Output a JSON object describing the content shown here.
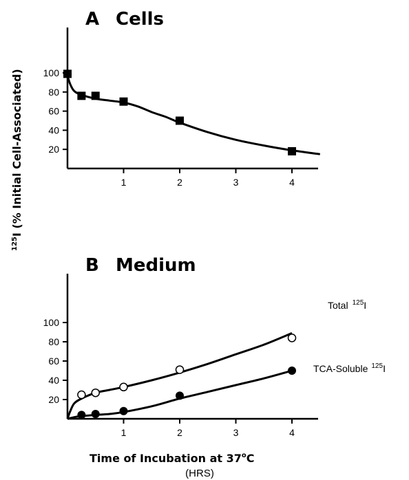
{
  "chart_data": [
    {
      "type": "line",
      "panel": "A",
      "title": "Cells",
      "xlim": [
        0,
        4.5
      ],
      "ylim": [
        0,
        105
      ],
      "xticks": [
        "1",
        "2",
        "3",
        "4"
      ],
      "yticks": [
        "20",
        "40",
        "60",
        "80",
        "100"
      ],
      "series": [
        {
          "marker": "filled-square",
          "points": [
            {
              "x": 0,
              "y": 99
            },
            {
              "x": 0.25,
              "y": 76
            },
            {
              "x": 0.5,
              "y": 76
            },
            {
              "x": 1,
              "y": 70
            },
            {
              "x": 2,
              "y": 50
            },
            {
              "x": 4,
              "y": 18
            }
          ],
          "fit": [
            [
              0,
              97
            ],
            [
              0.05,
              88
            ],
            [
              0.12,
              81
            ],
            [
              0.25,
              77
            ],
            [
              0.5,
              73
            ],
            [
              0.75,
              71
            ],
            [
              1,
              69
            ],
            [
              1.25,
              65
            ],
            [
              1.5,
              59
            ],
            [
              1.75,
              54
            ],
            [
              2,
              48
            ],
            [
              2.5,
              38
            ],
            [
              3,
              30
            ],
            [
              3.5,
              24
            ],
            [
              4,
              19
            ],
            [
              4.5,
              15
            ]
          ]
        }
      ]
    },
    {
      "type": "line",
      "panel": "B",
      "title": "Medium",
      "xlim": [
        0,
        4.5
      ],
      "ylim": [
        0,
        105
      ],
      "xticks": [
        "1",
        "2",
        "3",
        "4"
      ],
      "yticks": [
        "20",
        "40",
        "60",
        "80",
        "100"
      ],
      "series": [
        {
          "name": "Total",
          "name_sup": "125",
          "name_tail": "I",
          "marker": "open-circle",
          "points": [
            {
              "x": 0.25,
              "y": 25
            },
            {
              "x": 0.5,
              "y": 27
            },
            {
              "x": 1,
              "y": 33
            },
            {
              "x": 2,
              "y": 51
            },
            {
              "x": 4,
              "y": 84
            }
          ],
          "fit": [
            [
              0,
              0
            ],
            [
              0.05,
              8
            ],
            [
              0.12,
              16
            ],
            [
              0.25,
              21
            ],
            [
              0.5,
              27
            ],
            [
              0.75,
              30
            ],
            [
              1,
              33
            ],
            [
              1.5,
              40
            ],
            [
              2,
              48
            ],
            [
              2.5,
              57
            ],
            [
              3,
              67
            ],
            [
              3.5,
              77
            ],
            [
              4,
              89
            ]
          ]
        },
        {
          "name": "TCA-Soluble",
          "name_sup": "125",
          "name_tail": "I",
          "marker": "filled-circle",
          "points": [
            {
              "x": 0.25,
              "y": 4
            },
            {
              "x": 0.5,
              "y": 5
            },
            {
              "x": 1,
              "y": 8
            },
            {
              "x": 2,
              "y": 24
            },
            {
              "x": 4,
              "y": 50
            }
          ],
          "fit": [
            [
              0,
              0
            ],
            [
              0.15,
              2
            ],
            [
              0.3,
              3
            ],
            [
              0.5,
              4
            ],
            [
              0.75,
              5
            ],
            [
              1,
              7
            ],
            [
              1.5,
              13
            ],
            [
              2,
              21
            ],
            [
              2.5,
              28
            ],
            [
              3,
              35
            ],
            [
              3.5,
              42
            ],
            [
              4,
              50
            ]
          ]
        }
      ]
    }
  ],
  "labels": {
    "ylabel_prefix": "125",
    "ylabel_main": "I (% Initial Cell-Associated)",
    "xlabel": "Time of Incubation at 37",
    "xlabel_deg": "o",
    "xlabel_tail": "C",
    "xunit": "(HRS)"
  }
}
